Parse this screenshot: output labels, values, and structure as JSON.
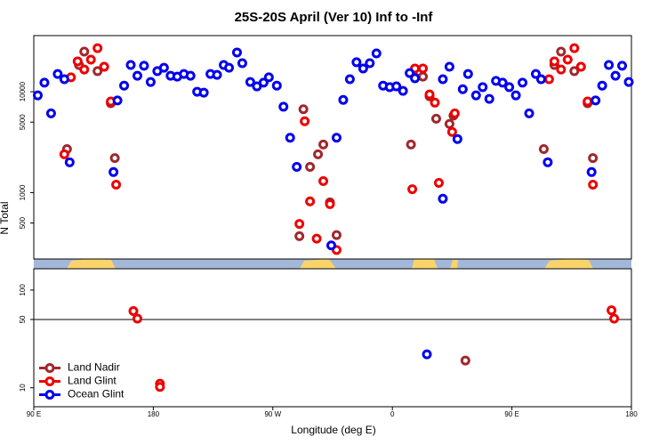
{
  "chart_data": [
    {
      "type": "scatter",
      "title": "25S-20S April (Ver 10)   Inf to -Inf",
      "ylabel": "N Total",
      "log_y": true,
      "ylim": [
        220,
        36000
      ],
      "yticks": [
        500,
        1000,
        5000,
        10000
      ],
      "series": [
        {
          "color": "#a0282c",
          "x": [
            115,
            124,
            128,
            138,
            143,
            148,
            151,
            290,
            293,
            298,
            304,
            308,
            313,
            318,
            374,
            377,
            383,
            388,
            393,
            403,
            406,
            474,
            482,
            487,
            497,
            502,
            507,
            511
          ],
          "values": [
            2700,
            18400,
            25000,
            16000,
            17700,
            7700,
            2200,
            370,
            6700,
            1800,
            2400,
            3000,
            800,
            380,
            3000,
            13900,
            14100,
            9000,
            5400,
            4800,
            5800,
            2700,
            18400,
            25000,
            16000,
            17700,
            7700,
            2200
          ]
        },
        {
          "color": "#ee0000",
          "x": [
            113,
            118,
            123,
            128,
            133,
            138,
            143,
            148,
            152,
            290,
            294,
            298,
            303,
            308,
            313,
            318,
            375,
            377,
            383,
            388,
            392,
            395,
            405,
            407,
            478,
            482,
            487,
            492,
            497,
            502,
            507,
            511
          ],
          "values": [
            2400,
            13900,
            20000,
            16600,
            20800,
            27000,
            17700,
            8000,
            1200,
            490,
            5100,
            820,
            350,
            1300,
            770,
            270,
            1080,
            17000,
            17000,
            9400,
            7800,
            1250,
            4000,
            6100,
            13300,
            20000,
            16600,
            20800,
            27000,
            17700,
            8000,
            1200
          ]
        },
        {
          "color": "#0000ee",
          "x": [
            93,
            98,
            103,
            108,
            113,
            117,
            150,
            153,
            158,
            163,
            168,
            173,
            178,
            183,
            188,
            193,
            198,
            203,
            208,
            213,
            218,
            223,
            228,
            233,
            237,
            243,
            247,
            253,
            258,
            263,
            267,
            273,
            278,
            283,
            288,
            314,
            318,
            323,
            328,
            333,
            338,
            343,
            348,
            353,
            358,
            363,
            368,
            373,
            377,
            398,
            398,
            403,
            409,
            413,
            417,
            423,
            428,
            433,
            438,
            443,
            448,
            453,
            458,
            463,
            468,
            472,
            477,
            510,
            513,
            518,
            523,
            528,
            533,
            538
          ],
          "values": [
            9200,
            12300,
            6100,
            15000,
            13300,
            2000,
            1600,
            8200,
            11500,
            18400,
            14400,
            18100,
            12500,
            16000,
            17300,
            14400,
            14100,
            15000,
            14400,
            10000,
            9800,
            15000,
            14700,
            18400,
            17300,
            24500,
            19200,
            12500,
            11300,
            12300,
            13900,
            11500,
            7100,
            3500,
            1800,
            300,
            3500,
            8300,
            13300,
            19600,
            17000,
            19200,
            24000,
            11500,
            11100,
            11300,
            10200,
            15300,
            13600,
            870,
            13300,
            17700,
            3400,
            10600,
            15000,
            9200,
            11100,
            8500,
            12800,
            12300,
            11100,
            9200,
            12300,
            6100,
            15000,
            13300,
            2000,
            1600,
            8200,
            11500,
            18400,
            14400,
            18100,
            12500
          ]
        }
      ]
    },
    {
      "type": "scatter",
      "xlabel": "Longitude (deg E)",
      "log_y": true,
      "xlim": [
        90,
        540
      ],
      "xticks": [
        {
          "value": 90,
          "label": "90 E"
        },
        {
          "value": 180,
          "label": "180"
        },
        {
          "value": 270,
          "label": "90 W"
        },
        {
          "value": 360,
          "label": "0"
        },
        {
          "value": 450,
          "label": "90 E"
        },
        {
          "value": 540,
          "label": "180"
        }
      ],
      "ylim": [
        6.4,
        165
      ],
      "yticks": [
        10,
        50,
        100
      ],
      "hline": 50,
      "legend": "lower left",
      "series": [
        {
          "name": "Land Nadir",
          "color": "#a0282c",
          "x": [
            415
          ],
          "values": [
            19
          ]
        },
        {
          "name": "Land Glint",
          "color": "#ee0000",
          "x": [
            165,
            168,
            185,
            185,
            525,
            527
          ],
          "values": [
            61,
            51,
            11,
            10.2,
            62,
            51
          ]
        },
        {
          "name": "Ocean Glint",
          "color": "#0000ee",
          "x": [
            386
          ],
          "values": [
            22
          ]
        }
      ]
    }
  ]
}
